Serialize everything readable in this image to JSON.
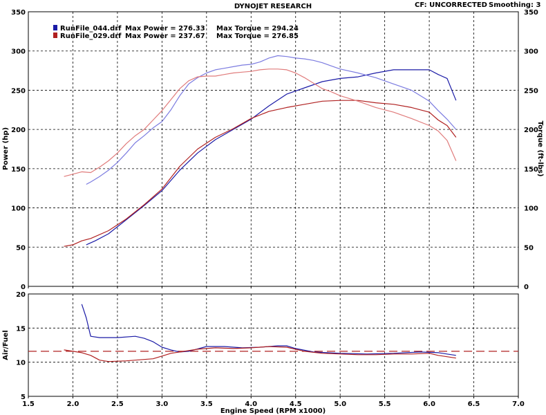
{
  "header": {
    "title": "DYNOJET RESEARCH",
    "cf": "CF: UNCORRECTED",
    "smoothing": "Smoothing: 3"
  },
  "legend": [
    {
      "file": "RunFile_044.drf",
      "power_text": "Max Power = 276.33",
      "torque_text": "Max Torque = 294.24",
      "color": "#1a1aa6"
    },
    {
      "file": "RunFile_029.drf",
      "power_text": "Max Power = 237.67",
      "torque_text": "Max Torque = 276.85",
      "color": "#b02020"
    }
  ],
  "chart_data": [
    {
      "type": "line",
      "xlabel": "Engine Speed (RPM x1000)",
      "ylabel": "Power (hp)",
      "y2label": "Torque (ft-lbs)",
      "xlim": [
        1.5,
        7.0
      ],
      "ylim": [
        0,
        350
      ],
      "xticks": [
        "1.5",
        "2.0",
        "2.5",
        "3.0",
        "3.5",
        "4.0",
        "4.5",
        "5.0",
        "5.5",
        "6.0",
        "6.5",
        "7.0"
      ],
      "yticks": [
        "0",
        "50",
        "100",
        "150",
        "200",
        "250",
        "300",
        "350"
      ],
      "grid": true,
      "series": [
        {
          "name": "RunFile_044.drf",
          "measure": "power",
          "color": "#1a1aa6",
          "x": [
            2.15,
            2.25,
            2.4,
            2.6,
            2.8,
            3.0,
            3.2,
            3.4,
            3.6,
            3.8,
            4.0,
            4.2,
            4.4,
            4.6,
            4.8,
            5.0,
            5.2,
            5.4,
            5.6,
            5.8,
            6.0,
            6.1,
            6.2,
            6.3
          ],
          "y": [
            53,
            58,
            67,
            85,
            103,
            122,
            148,
            170,
            187,
            200,
            213,
            230,
            245,
            253,
            261,
            265,
            267,
            272,
            276,
            276,
            276,
            270,
            265,
            237
          ]
        },
        {
          "name": "RunFile_029.drf",
          "measure": "power",
          "color": "#b02020",
          "x": [
            1.9,
            2.0,
            2.1,
            2.2,
            2.4,
            2.6,
            2.8,
            3.0,
            3.2,
            3.4,
            3.6,
            3.8,
            4.0,
            4.2,
            4.4,
            4.6,
            4.8,
            5.0,
            5.2,
            5.4,
            5.6,
            5.8,
            6.0,
            6.1,
            6.2,
            6.3
          ],
          "y": [
            51,
            53,
            58,
            61,
            71,
            86,
            104,
            124,
            153,
            175,
            190,
            201,
            214,
            223,
            228,
            232,
            236,
            237,
            237,
            234,
            232,
            228,
            222,
            212,
            205,
            190
          ]
        },
        {
          "name": "RunFile_044.drf",
          "measure": "torque",
          "color": "#7b7be0",
          "x": [
            2.15,
            2.2,
            2.3,
            2.4,
            2.5,
            2.6,
            2.7,
            2.8,
            2.9,
            3.0,
            3.1,
            3.2,
            3.3,
            3.4,
            3.5,
            3.6,
            3.7,
            3.8,
            3.9,
            4.0,
            4.1,
            4.2,
            4.3,
            4.4,
            4.5,
            4.6,
            4.7,
            4.8,
            4.9,
            5.0,
            5.2,
            5.4,
            5.6,
            5.8,
            6.0,
            6.1,
            6.2,
            6.3
          ],
          "y": [
            130,
            133,
            140,
            148,
            158,
            170,
            183,
            192,
            202,
            210,
            225,
            243,
            258,
            266,
            272,
            276,
            278,
            280,
            282,
            283,
            286,
            291,
            294,
            293,
            291,
            290,
            288,
            285,
            281,
            277,
            272,
            266,
            258,
            250,
            236,
            224,
            213,
            200
          ]
        },
        {
          "name": "RunFile_029.drf",
          "measure": "torque",
          "color": "#e07b7b",
          "x": [
            1.9,
            2.0,
            2.1,
            2.2,
            2.3,
            2.4,
            2.5,
            2.6,
            2.7,
            2.8,
            2.9,
            3.0,
            3.1,
            3.2,
            3.3,
            3.4,
            3.5,
            3.6,
            3.7,
            3.8,
            3.9,
            4.0,
            4.1,
            4.2,
            4.3,
            4.4,
            4.5,
            4.6,
            4.7,
            4.8,
            4.9,
            5.0,
            5.2,
            5.4,
            5.6,
            5.8,
            6.0,
            6.1,
            6.2,
            6.3
          ],
          "y": [
            140,
            143,
            146,
            145,
            152,
            160,
            170,
            182,
            192,
            200,
            212,
            224,
            238,
            252,
            262,
            267,
            268,
            268,
            270,
            272,
            273,
            274,
            276,
            277,
            277,
            276,
            272,
            266,
            259,
            252,
            248,
            243,
            236,
            228,
            222,
            214,
            205,
            198,
            186,
            160
          ]
        }
      ]
    },
    {
      "type": "line",
      "xlabel": "Engine Speed (RPM x1000)",
      "ylabel": "Air/Fuel",
      "xlim": [
        1.5,
        7.0
      ],
      "ylim": [
        5,
        20
      ],
      "xticks": [
        "1.5",
        "2.0",
        "2.5",
        "3.0",
        "3.5",
        "4.0",
        "4.5",
        "5.0",
        "5.5",
        "6.0",
        "6.5",
        "7.0"
      ],
      "yticks": [
        "5",
        "10",
        "15",
        "20"
      ],
      "grid": true,
      "reference_line": {
        "y": 11.6,
        "color": "#b02020",
        "dashed": true
      },
      "series": [
        {
          "name": "RunFile_044.drf",
          "color": "#1a1aa6",
          "x": [
            2.1,
            2.15,
            2.2,
            2.3,
            2.5,
            2.7,
            2.8,
            2.9,
            3.0,
            3.1,
            3.2,
            3.3,
            3.5,
            3.7,
            3.9,
            4.1,
            4.3,
            4.4,
            4.5,
            4.7,
            5.0,
            5.3,
            5.6,
            5.9,
            6.1,
            6.3
          ],
          "y": [
            18.5,
            16.5,
            13.8,
            13.6,
            13.6,
            13.8,
            13.5,
            13.0,
            12.2,
            11.8,
            11.5,
            11.6,
            12.3,
            12.3,
            12.1,
            12.2,
            12.4,
            12.4,
            12.0,
            11.5,
            11.3,
            11.2,
            11.3,
            11.5,
            11.4,
            11.0
          ]
        },
        {
          "name": "RunFile_029.drf",
          "color": "#b02020",
          "x": [
            1.9,
            2.0,
            2.1,
            2.2,
            2.3,
            2.4,
            2.6,
            2.8,
            2.9,
            3.0,
            3.1,
            3.2,
            3.4,
            3.6,
            3.8,
            4.0,
            4.2,
            4.4,
            4.6,
            4.8,
            5.0,
            5.2,
            5.4,
            5.6,
            5.8,
            6.0,
            6.1,
            6.3
          ],
          "y": [
            11.8,
            11.6,
            11.4,
            11.0,
            10.3,
            10.1,
            10.2,
            10.4,
            10.5,
            10.9,
            11.3,
            11.5,
            11.9,
            12.1,
            12.0,
            12.1,
            12.3,
            12.2,
            11.6,
            11.3,
            11.2,
            11.1,
            11.1,
            11.2,
            11.2,
            11.3,
            11.0,
            10.6
          ]
        }
      ]
    }
  ]
}
